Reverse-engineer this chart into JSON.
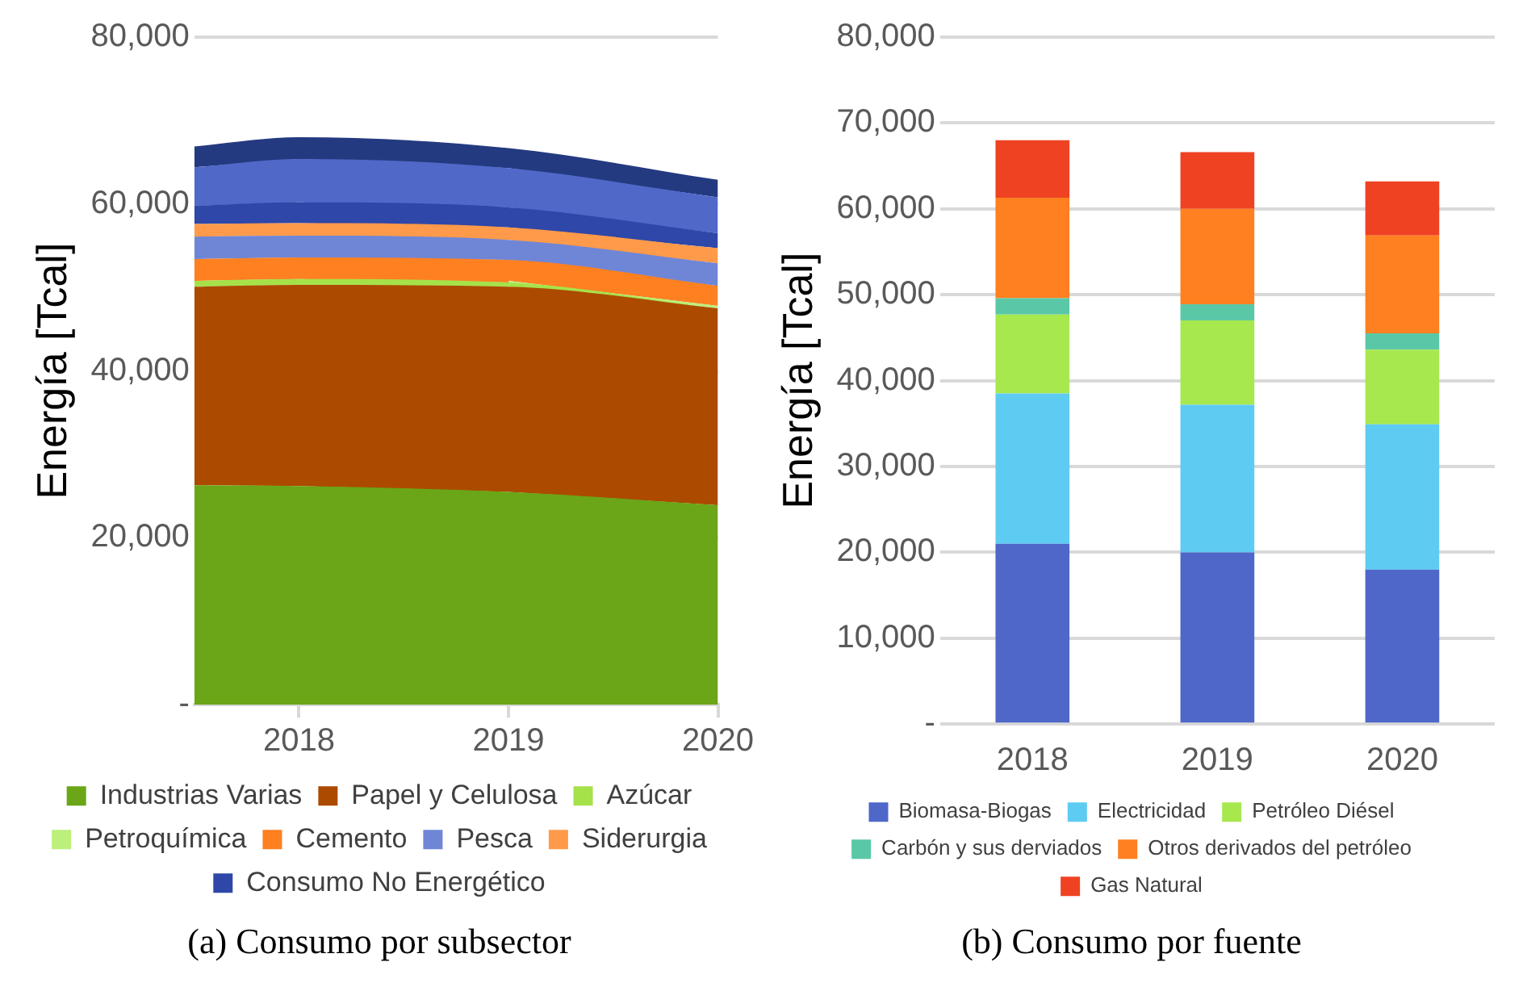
{
  "chart_data": [
    {
      "type": "area",
      "title": "(a) Consumo por subsector",
      "ylabel": "Energía [Tcal]",
      "x": [
        2017.5,
        2018,
        2019,
        2020
      ],
      "xlim": [
        2017.5,
        2020
      ],
      "xticks": [
        2018,
        2019,
        2020
      ],
      "ylim": [
        0,
        80000
      ],
      "yticks": [
        {
          "value": 0,
          "label": "-"
        },
        {
          "value": 20000,
          "label": "20,000"
        },
        {
          "value": 40000,
          "label": "40,000"
        },
        {
          "value": 60000,
          "label": "60,000"
        },
        {
          "value": 80000,
          "label": "80,000"
        }
      ],
      "stacked": true,
      "grid": "y",
      "legend": "bottom",
      "series": [
        {
          "name": "Industrias Varias",
          "color": "#6aa617",
          "values": [
            26300,
            26200,
            25500,
            23900
          ]
        },
        {
          "name": "Papel y Celulosa",
          "color": "#ac4a00",
          "values": [
            23800,
            24100,
            24600,
            23600
          ]
        },
        {
          "name": "Azúcar",
          "color": "#a5e24a",
          "values": [
            700,
            700,
            500,
            0
          ]
        },
        {
          "name": "Petroquímica",
          "color": "#bcef7c",
          "values": [
            null,
            null,
            200,
            300
          ]
        },
        {
          "name": "Cemento",
          "color": "#fe8021",
          "values": [
            2600,
            2600,
            2500,
            2400
          ]
        },
        {
          "name": "Pesca",
          "color": "#6f86d6",
          "values": [
            2700,
            2600,
            2400,
            2700
          ]
        },
        {
          "name": "Siderurgia",
          "color": "#ff9a4a",
          "values": [
            1500,
            1500,
            1500,
            1800
          ]
        },
        {
          "name": "Consumo No Energético",
          "color": "#2e47a8",
          "values": [
            2200,
            2500,
            2400,
            1800
          ]
        },
        {
          "color": "#5068c8",
          "values": [
            4600,
            5200,
            4700,
            4300
          ]
        },
        {
          "color": "#243a80",
          "values": [
            2500,
            2600,
            2400,
            2100
          ]
        }
      ]
    },
    {
      "type": "bar",
      "title": "(b) Consumo por fuente",
      "ylabel": "Energía [Tcal]",
      "categories": [
        "2018",
        "2019",
        "2020"
      ],
      "ylim": [
        0,
        80000
      ],
      "yticks": [
        {
          "value": 0,
          "label": "-"
        },
        {
          "value": 10000,
          "label": "10,000"
        },
        {
          "value": 20000,
          "label": "20,000"
        },
        {
          "value": 30000,
          "label": "30,000"
        },
        {
          "value": 40000,
          "label": "40,000"
        },
        {
          "value": 50000,
          "label": "50,000"
        },
        {
          "value": 60000,
          "label": "60,000"
        },
        {
          "value": 70000,
          "label": "70,000"
        },
        {
          "value": 80000,
          "label": "80,000"
        }
      ],
      "stacked": true,
      "grid": "y",
      "legend": "bottom",
      "series": [
        {
          "name": "Biomasa-Biogas",
          "color": "#4e67c8",
          "values": [
            21000,
            20000,
            18000
          ]
        },
        {
          "name": "Electricidad",
          "color": "#5ecbf2",
          "values": [
            17500,
            17200,
            16900
          ]
        },
        {
          "name": "Petróleo Diésel",
          "color": "#a6e84e",
          "values": [
            9200,
            9800,
            8700
          ]
        },
        {
          "name": "Carbón y sus derviados",
          "color": "#5ac8a7",
          "values": [
            1900,
            1900,
            1900
          ]
        },
        {
          "name": "Otros derivados del petróleo",
          "color": "#fe8020",
          "values": [
            11700,
            11100,
            11400
          ]
        },
        {
          "name": "Gas Natural",
          "color": "#ef4223",
          "values": [
            6700,
            6600,
            6300
          ]
        }
      ]
    }
  ]
}
